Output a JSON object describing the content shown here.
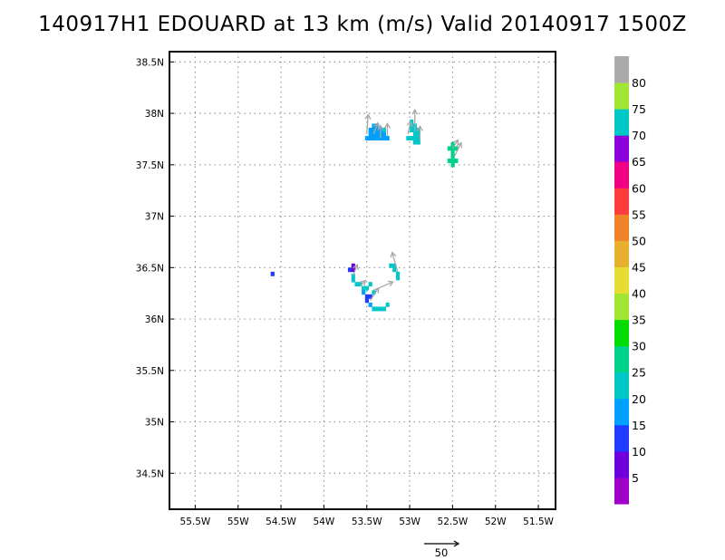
{
  "title": "140917H1 EDOUARD at 13 km (m/s) Valid 20140917 1500Z",
  "chart_data": {
    "type": "heatmap",
    "title": "140917H1 EDOUARD at 13 km (m/s) Valid 20140917 1500Z",
    "xlim": [
      -55.8,
      -51.3
    ],
    "ylim": [
      34.15,
      38.6
    ],
    "x_ticks": [
      {
        "value": -55.5,
        "label": "55.5W"
      },
      {
        "value": -55.0,
        "label": "55W"
      },
      {
        "value": -54.5,
        "label": "54.5W"
      },
      {
        "value": -54.0,
        "label": "54W"
      },
      {
        "value": -53.5,
        "label": "53.5W"
      },
      {
        "value": -53.0,
        "label": "53W"
      },
      {
        "value": -52.5,
        "label": "52.5W"
      },
      {
        "value": -52.0,
        "label": "52W"
      },
      {
        "value": -51.5,
        "label": "51.5W"
      }
    ],
    "y_ticks": [
      {
        "value": 34.5,
        "label": "34.5N"
      },
      {
        "value": 35.0,
        "label": "35N"
      },
      {
        "value": 35.5,
        "label": "35.5N"
      },
      {
        "value": 36.0,
        "label": "36N"
      },
      {
        "value": 36.5,
        "label": "36.5N"
      },
      {
        "value": 37.0,
        "label": "37N"
      },
      {
        "value": 37.5,
        "label": "37.5N"
      },
      {
        "value": 38.0,
        "label": "38N"
      },
      {
        "value": 38.5,
        "label": "38.5N"
      }
    ],
    "grid": true,
    "colorbar": {
      "labels": [
        "5",
        "10",
        "15",
        "20",
        "25",
        "30",
        "35",
        "40",
        "45",
        "50",
        "55",
        "60",
        "65",
        "70",
        "75",
        "80"
      ],
      "colors": [
        "#a000c8",
        "#6e00dc",
        "#1e3cff",
        "#00a0ff",
        "#00c8c8",
        "#00d28c",
        "#00dc00",
        "#a0e632",
        "#e6dc32",
        "#e6af2d",
        "#f08228",
        "#fa3c3c",
        "#f00082",
        "#8c00dc",
        "#00c8c8",
        "#a0e632",
        "#aaaaaa"
      ]
    },
    "cells": [
      {
        "lon": -54.6,
        "lat": 36.44,
        "color": "#1e3cff"
      },
      {
        "lon": -53.66,
        "lat": 36.52,
        "color": "#6e00dc"
      },
      {
        "lon": -53.7,
        "lat": 36.48,
        "color": "#1e3cff"
      },
      {
        "lon": -53.66,
        "lat": 36.48,
        "color": "#6e00dc"
      },
      {
        "lon": -53.66,
        "lat": 36.42,
        "color": "#00c8c8"
      },
      {
        "lon": -53.66,
        "lat": 36.38,
        "color": "#00c8c8"
      },
      {
        "lon": -53.62,
        "lat": 36.34,
        "color": "#00c8c8"
      },
      {
        "lon": -53.58,
        "lat": 36.34,
        "color": "#00c8c8"
      },
      {
        "lon": -53.54,
        "lat": 36.3,
        "color": "#00c8c8"
      },
      {
        "lon": -53.5,
        "lat": 36.3,
        "color": "#00c8c8"
      },
      {
        "lon": -53.46,
        "lat": 36.34,
        "color": "#00c8c8"
      },
      {
        "lon": -53.54,
        "lat": 36.26,
        "color": "#00a0ff"
      },
      {
        "lon": -53.5,
        "lat": 36.22,
        "color": "#1e3cff"
      },
      {
        "lon": -53.46,
        "lat": 36.22,
        "color": "#1e3cff"
      },
      {
        "lon": -53.5,
        "lat": 36.18,
        "color": "#1e3cff"
      },
      {
        "lon": -53.46,
        "lat": 36.14,
        "color": "#00a0ff"
      },
      {
        "lon": -53.42,
        "lat": 36.26,
        "color": "#00c8c8"
      },
      {
        "lon": -53.42,
        "lat": 36.1,
        "color": "#00c8c8"
      },
      {
        "lon": -53.38,
        "lat": 36.1,
        "color": "#00c8c8"
      },
      {
        "lon": -53.34,
        "lat": 36.1,
        "color": "#00c8c8"
      },
      {
        "lon": -53.3,
        "lat": 36.1,
        "color": "#00c8c8"
      },
      {
        "lon": -53.26,
        "lat": 36.14,
        "color": "#00c8c8"
      },
      {
        "lon": -53.22,
        "lat": 36.52,
        "color": "#00c8c8"
      },
      {
        "lon": -53.18,
        "lat": 36.52,
        "color": "#00c8c8"
      },
      {
        "lon": -53.18,
        "lat": 36.48,
        "color": "#00c8c8"
      },
      {
        "lon": -53.14,
        "lat": 36.44,
        "color": "#00c8c8"
      },
      {
        "lon": -53.14,
        "lat": 36.4,
        "color": "#00c8c8"
      },
      {
        "lon": -53.5,
        "lat": 37.76,
        "color": "#00a0ff"
      },
      {
        "lon": -53.46,
        "lat": 37.76,
        "color": "#00a0ff"
      },
      {
        "lon": -53.42,
        "lat": 37.76,
        "color": "#00a0ff"
      },
      {
        "lon": -53.38,
        "lat": 37.76,
        "color": "#00a0ff"
      },
      {
        "lon": -53.34,
        "lat": 37.76,
        "color": "#00a0ff"
      },
      {
        "lon": -53.3,
        "lat": 37.76,
        "color": "#00a0ff"
      },
      {
        "lon": -53.26,
        "lat": 37.76,
        "color": "#00a0ff"
      },
      {
        "lon": -53.46,
        "lat": 37.8,
        "color": "#00a0ff"
      },
      {
        "lon": -53.42,
        "lat": 37.8,
        "color": "#00a0ff"
      },
      {
        "lon": -53.38,
        "lat": 37.8,
        "color": "#00a0ff"
      },
      {
        "lon": -53.34,
        "lat": 37.8,
        "color": "#00a0ff"
      },
      {
        "lon": -53.3,
        "lat": 37.8,
        "color": "#00a0ff"
      },
      {
        "lon": -53.46,
        "lat": 37.84,
        "color": "#00a0ff"
      },
      {
        "lon": -53.42,
        "lat": 37.84,
        "color": "#00a0ff"
      },
      {
        "lon": -53.38,
        "lat": 37.84,
        "color": "#00a0ff"
      },
      {
        "lon": -53.34,
        "lat": 37.84,
        "color": "#00a0ff"
      },
      {
        "lon": -53.42,
        "lat": 37.88,
        "color": "#00a0ff"
      },
      {
        "lon": -53.38,
        "lat": 37.88,
        "color": "#00a0ff"
      },
      {
        "lon": -53.3,
        "lat": 37.84,
        "color": "#00c8c8"
      },
      {
        "lon": -53.02,
        "lat": 37.76,
        "color": "#00c8c8"
      },
      {
        "lon": -52.98,
        "lat": 37.76,
        "color": "#00c8c8"
      },
      {
        "lon": -52.94,
        "lat": 37.72,
        "color": "#00c8c8"
      },
      {
        "lon": -52.9,
        "lat": 37.72,
        "color": "#00c8c8"
      },
      {
        "lon": -52.94,
        "lat": 37.76,
        "color": "#00c8c8"
      },
      {
        "lon": -52.9,
        "lat": 37.76,
        "color": "#00c8c8"
      },
      {
        "lon": -52.94,
        "lat": 37.8,
        "color": "#00c8c8"
      },
      {
        "lon": -52.9,
        "lat": 37.8,
        "color": "#00c8c8"
      },
      {
        "lon": -52.94,
        "lat": 37.84,
        "color": "#00c8c8"
      },
      {
        "lon": -52.9,
        "lat": 37.84,
        "color": "#00c8c8"
      },
      {
        "lon": -52.98,
        "lat": 37.84,
        "color": "#00c8c8"
      },
      {
        "lon": -52.98,
        "lat": 37.88,
        "color": "#00c8c8"
      },
      {
        "lon": -52.94,
        "lat": 37.88,
        "color": "#00c8c8"
      },
      {
        "lon": -52.98,
        "lat": 37.92,
        "color": "#00c8c8"
      },
      {
        "lon": -52.5,
        "lat": 37.7,
        "color": "#00d28c"
      },
      {
        "lon": -52.54,
        "lat": 37.66,
        "color": "#00d28c"
      },
      {
        "lon": -52.5,
        "lat": 37.66,
        "color": "#00d28c"
      },
      {
        "lon": -52.46,
        "lat": 37.66,
        "color": "#00d28c"
      },
      {
        "lon": -52.5,
        "lat": 37.62,
        "color": "#00d28c"
      },
      {
        "lon": -52.5,
        "lat": 37.58,
        "color": "#00d28c"
      },
      {
        "lon": -52.54,
        "lat": 37.54,
        "color": "#00d28c"
      },
      {
        "lon": -52.5,
        "lat": 37.54,
        "color": "#00d28c"
      },
      {
        "lon": -52.46,
        "lat": 37.54,
        "color": "#00d28c"
      },
      {
        "lon": -52.5,
        "lat": 37.5,
        "color": "#00d28c"
      }
    ],
    "vectors": [
      {
        "lon": -53.66,
        "lat": 36.42,
        "u": 3,
        "v": 8
      },
      {
        "lon": -53.58,
        "lat": 36.32,
        "u": 4,
        "v": 4
      },
      {
        "lon": -53.42,
        "lat": 36.28,
        "u": 14,
        "v": 6
      },
      {
        "lon": -53.46,
        "lat": 36.18,
        "u": 6,
        "v": 9
      },
      {
        "lon": -53.14,
        "lat": 36.46,
        "u": -4,
        "v": 14
      },
      {
        "lon": -53.5,
        "lat": 37.8,
        "u": 1,
        "v": 14
      },
      {
        "lon": -53.42,
        "lat": 37.8,
        "u": 3,
        "v": 8
      },
      {
        "lon": -53.34,
        "lat": 37.76,
        "u": 0,
        "v": 9
      },
      {
        "lon": -53.26,
        "lat": 37.78,
        "u": 0,
        "v": 9
      },
      {
        "lon": -53.02,
        "lat": 37.8,
        "u": 2,
        "v": 9
      },
      {
        "lon": -52.94,
        "lat": 37.82,
        "u": 0,
        "v": 16
      },
      {
        "lon": -52.88,
        "lat": 37.74,
        "u": 0,
        "v": 10
      },
      {
        "lon": -52.5,
        "lat": 37.66,
        "u": 4,
        "v": 6
      },
      {
        "lon": -52.48,
        "lat": 37.58,
        "u": 5,
        "v": 10
      }
    ],
    "reference_vector": {
      "label": "50",
      "magnitude": 50
    }
  }
}
